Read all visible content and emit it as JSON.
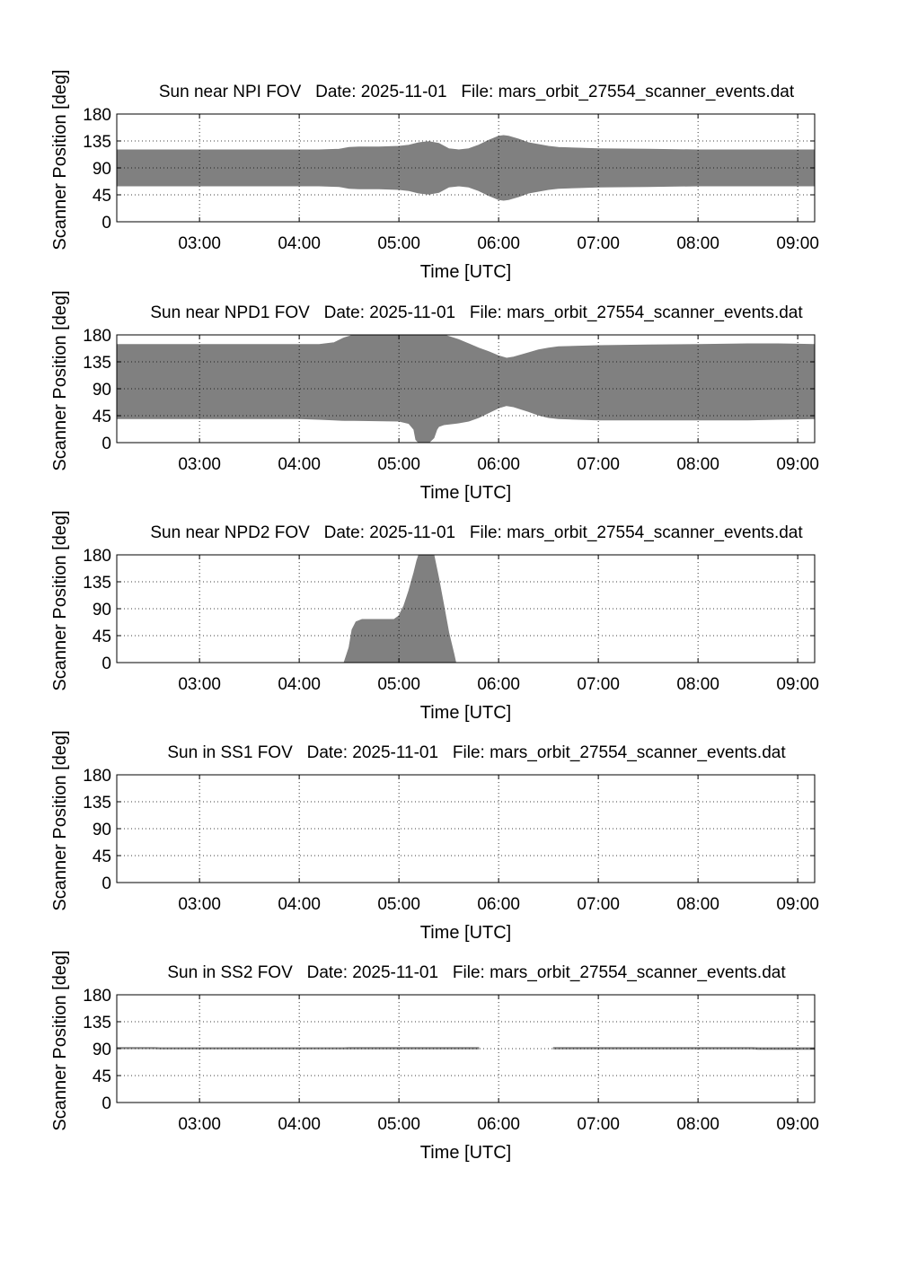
{
  "chart_data": [
    {
      "type": "area",
      "title": "Sun near NPI FOV   Date: 2025-11-01   File: mars_orbit_27554_scanner_events.dat",
      "xlabel": "Time [UTC]",
      "ylabel": "Scanner Position [deg]",
      "x_tick_labels": [
        "03:00",
        "04:00",
        "05:00",
        "06:00",
        "07:00",
        "08:00",
        "09:00"
      ],
      "y_tick_labels": [
        "0",
        "45",
        "90",
        "135",
        "180"
      ],
      "xlim_hours": [
        2.17,
        9.17
      ],
      "ylim": [
        0,
        180
      ],
      "grid": true,
      "fill_color": "#808080",
      "x_hours": [
        2.17,
        3.0,
        3.5,
        4.0,
        4.2,
        4.4,
        4.5,
        4.6,
        4.8,
        5.0,
        5.1,
        5.2,
        5.3,
        5.4,
        5.5,
        5.6,
        5.7,
        5.8,
        5.9,
        6.0,
        6.05,
        6.1,
        6.2,
        6.3,
        6.4,
        6.5,
        6.6,
        6.8,
        7.0,
        7.5,
        8.0,
        8.5,
        9.0,
        9.17
      ],
      "upper": [
        120,
        120,
        120,
        120,
        120,
        121,
        124,
        125,
        125,
        126,
        128,
        132,
        134,
        131,
        122,
        120,
        122,
        128,
        136,
        143,
        144,
        143,
        138,
        132,
        129,
        126,
        124,
        123,
        122,
        121,
        120,
        120,
        120,
        120
      ],
      "lower": [
        60,
        60,
        60,
        60,
        60,
        59,
        56,
        55,
        55,
        54,
        52,
        48,
        46,
        49,
        58,
        60,
        58,
        52,
        44,
        37,
        36,
        37,
        42,
        48,
        51,
        54,
        56,
        57,
        58,
        59,
        60,
        60,
        60,
        60
      ]
    },
    {
      "type": "area",
      "title": "Sun near NPD1 FOV   Date: 2025-11-01   File: mars_orbit_27554_scanner_events.dat",
      "xlabel": "Time [UTC]",
      "ylabel": "Scanner Position [deg]",
      "x_tick_labels": [
        "03:00",
        "04:00",
        "05:00",
        "06:00",
        "07:00",
        "08:00",
        "09:00"
      ],
      "y_tick_labels": [
        "0",
        "45",
        "90",
        "135",
        "180"
      ],
      "xlim_hours": [
        2.17,
        9.17
      ],
      "ylim": [
        0,
        180
      ],
      "grid": true,
      "fill_color": "#808080",
      "x_hours": [
        2.17,
        3.0,
        3.5,
        4.0,
        4.2,
        4.35,
        4.45,
        4.55,
        5.0,
        5.1,
        5.15,
        5.17,
        5.2,
        5.3,
        5.35,
        5.38,
        5.4,
        5.45,
        5.6,
        5.7,
        5.8,
        5.9,
        6.0,
        6.08,
        6.15,
        6.3,
        6.4,
        6.5,
        6.6,
        7.0,
        7.5,
        8.0,
        8.5,
        8.8,
        9.17
      ],
      "upper": [
        164,
        164,
        164,
        164,
        164,
        167,
        175,
        180,
        180,
        180,
        180,
        180,
        180,
        180,
        180,
        180,
        180,
        180,
        172,
        165,
        158,
        152,
        145,
        141,
        143,
        150,
        155,
        158,
        160,
        162,
        163,
        164,
        165,
        165,
        164
      ],
      "lower": [
        40,
        40,
        40,
        40,
        39,
        38,
        37,
        37,
        36,
        32,
        22,
        5,
        0,
        0,
        8,
        22,
        27,
        30,
        33,
        36,
        42,
        50,
        58,
        62,
        60,
        52,
        46,
        42,
        40,
        38,
        38,
        38,
        38,
        39,
        40
      ]
    },
    {
      "type": "area",
      "title": "Sun near NPD2 FOV   Date: 2025-11-01   File: mars_orbit_27554_scanner_events.dat",
      "xlabel": "Time [UTC]",
      "ylabel": "Scanner Position [deg]",
      "x_tick_labels": [
        "03:00",
        "04:00",
        "05:00",
        "06:00",
        "07:00",
        "08:00",
        "09:00"
      ],
      "y_tick_labels": [
        "0",
        "45",
        "90",
        "135",
        "180"
      ],
      "xlim_hours": [
        2.17,
        9.17
      ],
      "ylim": [
        0,
        180
      ],
      "grid": true,
      "fill_color": "#808080",
      "x_hours": [
        4.45,
        4.5,
        4.53,
        4.57,
        4.63,
        4.7,
        4.95,
        5.0,
        5.05,
        5.1,
        5.15,
        5.18,
        5.2,
        5.35,
        5.4,
        5.45,
        5.5,
        5.55,
        5.57
      ],
      "upper": [
        0,
        25,
        55,
        68,
        72,
        72,
        72,
        78,
        95,
        120,
        150,
        170,
        180,
        180,
        140,
        95,
        50,
        15,
        0
      ],
      "lower": [
        0,
        0,
        0,
        0,
        0,
        0,
        0,
        0,
        0,
        0,
        0,
        0,
        0,
        0,
        0,
        0,
        0,
        0,
        0
      ]
    },
    {
      "type": "area",
      "title": "Sun in SS1 FOV   Date: 2025-11-01   File: mars_orbit_27554_scanner_events.dat",
      "xlabel": "Time [UTC]",
      "ylabel": "Scanner Position [deg]",
      "x_tick_labels": [
        "03:00",
        "04:00",
        "05:00",
        "06:00",
        "07:00",
        "08:00",
        "09:00"
      ],
      "y_tick_labels": [
        "0",
        "45",
        "90",
        "135",
        "180"
      ],
      "xlim_hours": [
        2.17,
        9.17
      ],
      "ylim": [
        0,
        180
      ],
      "grid": true,
      "fill_color": "#808080",
      "x_hours": [],
      "upper": [],
      "lower": []
    },
    {
      "type": "area",
      "title": "Sun in SS2 FOV   Date: 2025-11-01   File: mars_orbit_27554_scanner_events.dat",
      "xlabel": "Time [UTC]",
      "ylabel": "Scanner Position [deg]",
      "x_tick_labels": [
        "03:00",
        "04:00",
        "05:00",
        "06:00",
        "07:00",
        "08:00",
        "09:00"
      ],
      "y_tick_labels": [
        "0",
        "45",
        "90",
        "135",
        "180"
      ],
      "xlim_hours": [
        2.17,
        9.17
      ],
      "ylim": [
        0,
        180
      ],
      "grid": true,
      "fill_color": "#808080",
      "x_hours": [
        2.17,
        2.55,
        2.6,
        4.45,
        4.5,
        5.8,
        5.82,
        6.52,
        6.55,
        8.55,
        8.6,
        9.17
      ],
      "upper": [
        92,
        92,
        91.5,
        91.5,
        92,
        92,
        null,
        null,
        92,
        92,
        91.5,
        91.5
      ],
      "lower": [
        90,
        90,
        89.5,
        89.5,
        89.5,
        89.5,
        null,
        null,
        89.5,
        89.5,
        89,
        89
      ]
    }
  ]
}
